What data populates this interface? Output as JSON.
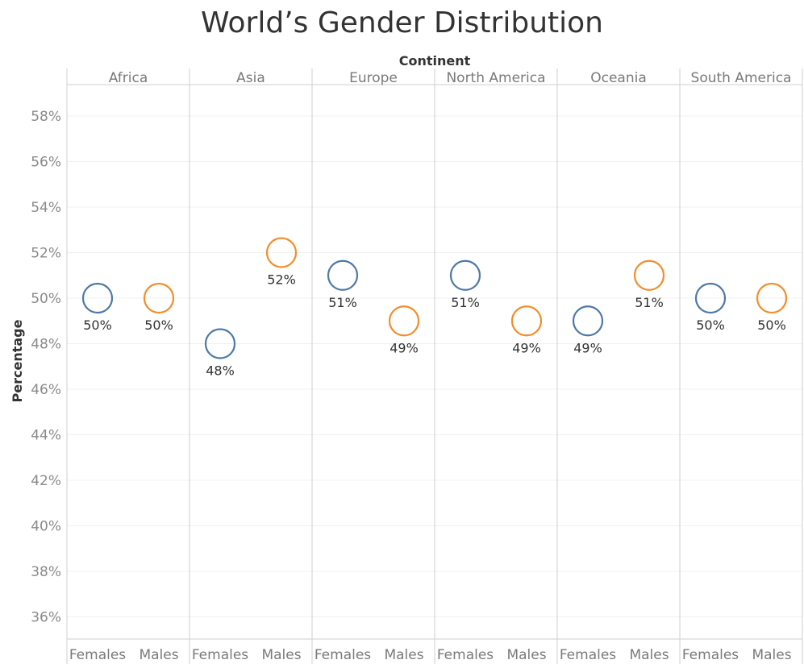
{
  "chart_data": {
    "type": "scatter",
    "title": "World’s Gender Distribution",
    "column_header_title": "Continent",
    "ylabel": "Percentage",
    "ylim": [
      35,
      59.5
    ],
    "y_ticks": [
      36,
      38,
      40,
      42,
      44,
      46,
      48,
      50,
      52,
      54,
      56,
      58
    ],
    "y_tick_labels": [
      "36%",
      "38%",
      "40%",
      "42%",
      "44%",
      "46%",
      "48%",
      "50%",
      "52%",
      "54%",
      "56%",
      "58%"
    ],
    "grid": true,
    "continents": [
      "Africa",
      "Asia",
      "Europe",
      "North America",
      "Oceania",
      "South America"
    ],
    "genders": [
      "Females",
      "Males"
    ],
    "colors": {
      "Females": "#4e79a7",
      "Males": "#f28e2b"
    },
    "series": [
      {
        "name": "Females",
        "values": [
          50,
          48,
          51,
          51,
          49,
          50
        ],
        "labels": [
          "50%",
          "48%",
          "51%",
          "51%",
          "49%",
          "50%"
        ]
      },
      {
        "name": "Males",
        "values": [
          50,
          52,
          49,
          49,
          51,
          50
        ],
        "labels": [
          "50%",
          "52%",
          "49%",
          "49%",
          "51%",
          "50%"
        ]
      }
    ]
  }
}
